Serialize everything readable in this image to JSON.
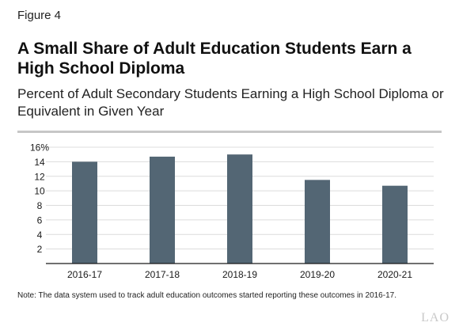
{
  "figure_label": "Figure 4",
  "note": "Note: The data system used to track adult education outcomes started reporting these outcomes in 2016-17.",
  "logo_text": "LAO",
  "colors": {
    "bar": "#536674",
    "grid": "#dcdcdc",
    "axis": "#1a1a1a"
  },
  "chart_data": {
    "type": "bar",
    "title": "A Small Share of Adult Education Students Earn a High School Diploma",
    "subtitle": "Percent of Adult Secondary Students Earning a High School Diploma or Equivalent in Given Year",
    "categories": [
      "2016-17",
      "2017-18",
      "2018-19",
      "2019-20",
      "2020-21"
    ],
    "values": [
      14.0,
      14.7,
      15.0,
      11.5,
      10.7
    ],
    "ylim": [
      0,
      16
    ],
    "yticks": [
      2,
      4,
      6,
      8,
      10,
      12,
      14,
      16
    ],
    "ytick_labels": [
      "2",
      "4",
      "6",
      "8",
      "10",
      "12",
      "14",
      "16%"
    ],
    "xlabel": "",
    "ylabel": "",
    "grid": true,
    "legend": "none"
  }
}
